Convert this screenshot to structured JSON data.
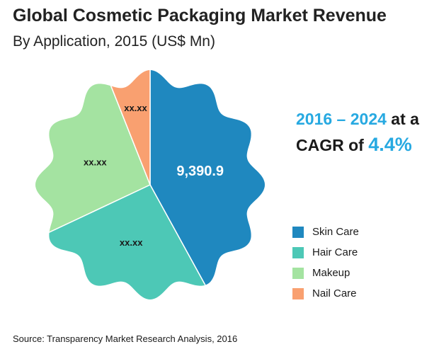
{
  "chart_data": {
    "type": "pie",
    "title": "Global Cosmetic Packaging Market Revenue",
    "subtitle": "By Application, 2015 (US$ Mn)",
    "categories": [
      "Skin Care",
      "Hair Care",
      "Makeup",
      "Nail Care"
    ],
    "values": [
      9390.9,
      null,
      null,
      null
    ],
    "labels": [
      "9,390.9",
      "xx.xx",
      "xx.xx",
      "xx.xx"
    ],
    "shares": [
      0.42,
      0.26,
      0.26,
      0.06
    ],
    "colors": [
      "#1f88bf",
      "#4dc8b6",
      "#a4e3a1",
      "#f9a070"
    ],
    "legend_position": "right"
  },
  "callout": {
    "range": "2016 – 2024",
    "at_a": " at a",
    "cagr_prefix": "CAGR of ",
    "cagr_value": "4.4%"
  },
  "source": "Source: Transparency Market Research Analysis, 2016"
}
